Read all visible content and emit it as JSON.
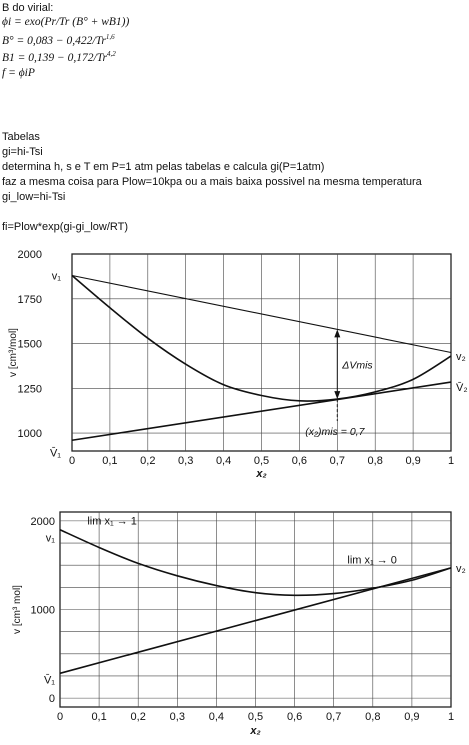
{
  "notes": {
    "heading": "B do virial:",
    "eq1": "ϕi = exo(Pr/Tr (B° + wB1))",
    "eq2_base": "B° = 0,083 − 0,422/Tr",
    "eq2_exp": "1,6",
    "eq3_base": "B1 = 0,139 − 0,172/Tr",
    "eq3_exp": "4,2",
    "eq4": "f = ϕiP",
    "tabelas": "Tabelas",
    "gi": "gi=hi-Tsi",
    "step1": "determina h, s e T em P=1 atm pelas tabelas e calcula gi(P=1atm)",
    "step2": "faz a mesma coisa para Plow=10kpa ou a mais baixa possivel na mesma temperatura",
    "gilow": "gi_low=hi-Tsi",
    "fi": "fi=Plow*exp(gi-gi_low/RT)"
  },
  "chart_data": [
    {
      "type": "line",
      "xlabel": "x₂",
      "ylabel": "v [cm³/mol]",
      "xlim": [
        0,
        1
      ],
      "ylim": [
        900,
        2000
      ],
      "x_ticks": [
        "0",
        "0,1",
        "0,2",
        "0,3",
        "0,4",
        "0,5",
        "0,6",
        "0,7",
        "0,8",
        "0,9",
        "1"
      ],
      "y_ticks": [
        "1000",
        "1250",
        "1500",
        "1750",
        "2000"
      ],
      "grid": true,
      "labels": {
        "v1": "v₁",
        "v2": "v₂",
        "v1bar": "V̄₁",
        "v2bar": "V̄₂",
        "dvmis": "ΔVmis",
        "x2mis": "(x₂)mis = 0,7"
      },
      "series": [
        {
          "x": [
            0,
            1
          ],
          "y": [
            1880,
            1450
          ]
        },
        {
          "x": [
            0,
            0.1,
            0.2,
            0.3,
            0.4,
            0.5,
            0.6,
            0.7,
            0.8,
            0.9,
            1.0
          ],
          "y": [
            1880,
            1700,
            1530,
            1385,
            1270,
            1210,
            1180,
            1190,
            1230,
            1300,
            1430
          ]
        },
        {
          "x": [
            0,
            1
          ],
          "y": [
            960,
            1285
          ]
        }
      ]
    },
    {
      "type": "line",
      "xlabel": "x₂",
      "ylabel": "v [cm³ mol]",
      "xlim": [
        0,
        1
      ],
      "ylim": [
        -100,
        2100
      ],
      "x_ticks": [
        "0",
        "0,1",
        "0,2",
        "0,3",
        "0,4",
        "0,5",
        "0,6",
        "0,7",
        "0,8",
        "0,9",
        "1"
      ],
      "y_ticks": [
        "0",
        "1000",
        "2000"
      ],
      "grid": true,
      "labels": {
        "v1": "v₁",
        "v2": "v₂",
        "v1bar": "V̄₁",
        "lim1": "lim x₁ → 1",
        "lim0": "lim x₁ → 0"
      },
      "series": [
        {
          "x": [
            0,
            0.1,
            0.2,
            0.3,
            0.4,
            0.5,
            0.6,
            0.7,
            0.8,
            0.9,
            1.0
          ],
          "y": [
            1900,
            1700,
            1520,
            1380,
            1270,
            1190,
            1160,
            1180,
            1240,
            1330,
            1470
          ]
        },
        {
          "x": [
            0,
            1
          ],
          "y": [
            280,
            1470
          ]
        }
      ]
    }
  ]
}
